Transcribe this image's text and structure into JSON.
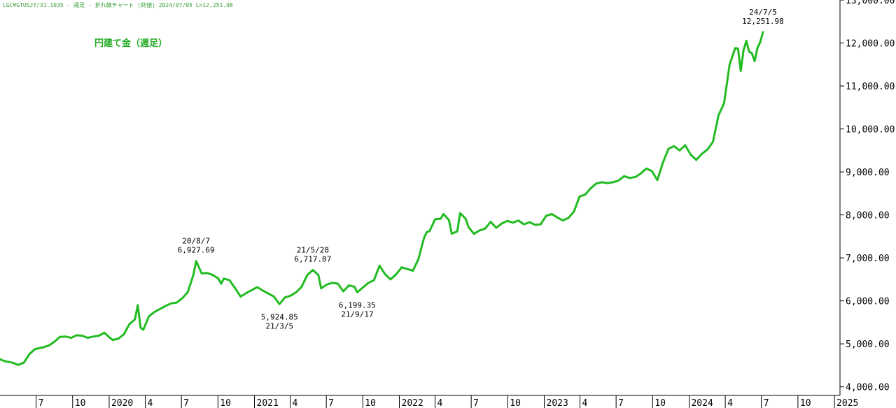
{
  "header": "LGC¥GTUSJY/31.1035 - 週足 - 折れ線チャート (終値)  2024/07/05 L=12,251.98",
  "chart_data": {
    "type": "line",
    "title": "円建て金（週足）",
    "xlabel": "",
    "ylabel": "",
    "ylim": [
      3800,
      13000
    ],
    "y_ticks": [
      "4,000.00",
      "5,000.00",
      "6,000.00",
      "7,000.00",
      "8,000.00",
      "9,000.00",
      "10,000.00",
      "11,000.00",
      "12,000.00",
      "13,000.00"
    ],
    "y_tick_values": [
      4000,
      5000,
      6000,
      7000,
      8000,
      9000,
      10000,
      11000,
      12000,
      13000
    ],
    "x_ticks": [
      {
        "label": "7",
        "date": "2019-07-01"
      },
      {
        "label": "10",
        "date": "2019-10-01"
      },
      {
        "label": "2020",
        "date": "2020-01-01"
      },
      {
        "label": "4",
        "date": "2020-04-01"
      },
      {
        "label": "7",
        "date": "2020-07-01"
      },
      {
        "label": "10",
        "date": "2020-10-01"
      },
      {
        "label": "2021",
        "date": "2021-01-01"
      },
      {
        "label": "4",
        "date": "2021-04-01"
      },
      {
        "label": "7",
        "date": "2021-07-01"
      },
      {
        "label": "10",
        "date": "2021-10-01"
      },
      {
        "label": "2022",
        "date": "2022-01-01"
      },
      {
        "label": "4",
        "date": "2022-04-01"
      },
      {
        "label": "7",
        "date": "2022-07-01"
      },
      {
        "label": "10",
        "date": "2022-10-01"
      },
      {
        "label": "2023",
        "date": "2023-01-01"
      },
      {
        "label": "4",
        "date": "2023-04-01"
      },
      {
        "label": "7",
        "date": "2023-07-01"
      },
      {
        "label": "10",
        "date": "2023-10-01"
      },
      {
        "label": "2024",
        "date": "2024-01-01"
      },
      {
        "label": "4",
        "date": "2024-04-01"
      },
      {
        "label": "7",
        "date": "2024-07-01"
      },
      {
        "label": "10",
        "date": "2024-10-01"
      },
      {
        "label": "2025",
        "date": "2025-01-01"
      }
    ],
    "x_range": [
      "2019-04-01",
      "2025-01-15"
    ],
    "series": [
      {
        "color": "#22bb22",
        "points": [
          [
            "2019-04-01",
            4640
          ],
          [
            "2019-04-12",
            4600
          ],
          [
            "2019-05-03",
            4560
          ],
          [
            "2019-05-17",
            4510
          ],
          [
            "2019-05-31",
            4560
          ],
          [
            "2019-06-14",
            4760
          ],
          [
            "2019-06-28",
            4880
          ],
          [
            "2019-07-19",
            4920
          ],
          [
            "2019-08-02",
            4960
          ],
          [
            "2019-08-16",
            5050
          ],
          [
            "2019-08-30",
            5160
          ],
          [
            "2019-09-13",
            5170
          ],
          [
            "2019-09-27",
            5140
          ],
          [
            "2019-10-11",
            5200
          ],
          [
            "2019-10-25",
            5190
          ],
          [
            "2019-11-08",
            5140
          ],
          [
            "2019-11-22",
            5170
          ],
          [
            "2019-12-06",
            5190
          ],
          [
            "2019-12-20",
            5260
          ],
          [
            "2020-01-03",
            5140
          ],
          [
            "2020-01-10",
            5090
          ],
          [
            "2020-01-24",
            5120
          ],
          [
            "2020-02-07",
            5220
          ],
          [
            "2020-02-21",
            5460
          ],
          [
            "2020-03-06",
            5570
          ],
          [
            "2020-03-13",
            5900
          ],
          [
            "2020-03-20",
            5380
          ],
          [
            "2020-03-27",
            5330
          ],
          [
            "2020-04-10",
            5640
          ],
          [
            "2020-04-24",
            5740
          ],
          [
            "2020-05-08",
            5810
          ],
          [
            "2020-05-22",
            5880
          ],
          [
            "2020-06-05",
            5940
          ],
          [
            "2020-06-19",
            5960
          ],
          [
            "2020-07-03",
            6060
          ],
          [
            "2020-07-17",
            6200
          ],
          [
            "2020-07-31",
            6600
          ],
          [
            "2020-08-07",
            6928
          ],
          [
            "2020-08-21",
            6640
          ],
          [
            "2020-09-04",
            6650
          ],
          [
            "2020-09-18",
            6600
          ],
          [
            "2020-10-02",
            6520
          ],
          [
            "2020-10-09",
            6400
          ],
          [
            "2020-10-16",
            6520
          ],
          [
            "2020-10-30",
            6480
          ],
          [
            "2020-11-13",
            6300
          ],
          [
            "2020-11-27",
            6100
          ],
          [
            "2020-12-11",
            6180
          ],
          [
            "2020-12-25",
            6250
          ],
          [
            "2021-01-08",
            6320
          ],
          [
            "2021-01-22",
            6240
          ],
          [
            "2021-02-05",
            6170
          ],
          [
            "2021-02-19",
            6100
          ],
          [
            "2021-03-05",
            5925
          ],
          [
            "2021-03-19",
            6080
          ],
          [
            "2021-04-02",
            6120
          ],
          [
            "2021-04-16",
            6200
          ],
          [
            "2021-04-30",
            6330
          ],
          [
            "2021-05-14",
            6600
          ],
          [
            "2021-05-28",
            6717
          ],
          [
            "2021-06-11",
            6600
          ],
          [
            "2021-06-18",
            6290
          ],
          [
            "2021-07-02",
            6380
          ],
          [
            "2021-07-16",
            6420
          ],
          [
            "2021-07-30",
            6400
          ],
          [
            "2021-08-13",
            6220
          ],
          [
            "2021-08-27",
            6360
          ],
          [
            "2021-09-10",
            6330
          ],
          [
            "2021-09-17",
            6199
          ],
          [
            "2021-10-01",
            6310
          ],
          [
            "2021-10-15",
            6420
          ],
          [
            "2021-10-29",
            6480
          ],
          [
            "2021-11-12",
            6820
          ],
          [
            "2021-11-26",
            6620
          ],
          [
            "2021-12-10",
            6500
          ],
          [
            "2021-12-24",
            6620
          ],
          [
            "2022-01-07",
            6780
          ],
          [
            "2022-01-21",
            6740
          ],
          [
            "2022-02-04",
            6700
          ],
          [
            "2022-02-18",
            6970
          ],
          [
            "2022-03-04",
            7460
          ],
          [
            "2022-03-11",
            7600
          ],
          [
            "2022-03-18",
            7620
          ],
          [
            "2022-04-01",
            7900
          ],
          [
            "2022-04-15",
            7910
          ],
          [
            "2022-04-22",
            8020
          ],
          [
            "2022-05-06",
            7880
          ],
          [
            "2022-05-13",
            7560
          ],
          [
            "2022-05-27",
            7620
          ],
          [
            "2022-06-03",
            8040
          ],
          [
            "2022-06-17",
            7910
          ],
          [
            "2022-06-24",
            7720
          ],
          [
            "2022-07-08",
            7560
          ],
          [
            "2022-07-22",
            7640
          ],
          [
            "2022-08-05",
            7680
          ],
          [
            "2022-08-19",
            7840
          ],
          [
            "2022-09-02",
            7700
          ],
          [
            "2022-09-16",
            7800
          ],
          [
            "2022-09-30",
            7860
          ],
          [
            "2022-10-14",
            7820
          ],
          [
            "2022-10-28",
            7870
          ],
          [
            "2022-11-11",
            7780
          ],
          [
            "2022-11-25",
            7830
          ],
          [
            "2022-12-09",
            7770
          ],
          [
            "2022-12-23",
            7780
          ],
          [
            "2023-01-06",
            7980
          ],
          [
            "2023-01-20",
            8020
          ],
          [
            "2023-02-03",
            7940
          ],
          [
            "2023-02-17",
            7870
          ],
          [
            "2023-03-03",
            7930
          ],
          [
            "2023-03-17",
            8080
          ],
          [
            "2023-03-31",
            8430
          ],
          [
            "2023-04-14",
            8470
          ],
          [
            "2023-04-28",
            8620
          ],
          [
            "2023-05-12",
            8730
          ],
          [
            "2023-05-26",
            8760
          ],
          [
            "2023-06-09",
            8740
          ],
          [
            "2023-06-23",
            8760
          ],
          [
            "2023-07-07",
            8800
          ],
          [
            "2023-07-21",
            8900
          ],
          [
            "2023-08-04",
            8860
          ],
          [
            "2023-08-18",
            8880
          ],
          [
            "2023-09-01",
            8960
          ],
          [
            "2023-09-15",
            9080
          ],
          [
            "2023-09-29",
            9020
          ],
          [
            "2023-10-13",
            8810
          ],
          [
            "2023-10-27",
            9220
          ],
          [
            "2023-11-10",
            9540
          ],
          [
            "2023-11-24",
            9600
          ],
          [
            "2023-12-08",
            9500
          ],
          [
            "2023-12-22",
            9620
          ],
          [
            "2024-01-05",
            9400
          ],
          [
            "2024-01-19",
            9280
          ],
          [
            "2024-02-02",
            9420
          ],
          [
            "2024-02-16",
            9520
          ],
          [
            "2024-03-01",
            9700
          ],
          [
            "2024-03-15",
            10320
          ],
          [
            "2024-03-29",
            10600
          ],
          [
            "2024-04-12",
            11500
          ],
          [
            "2024-04-26",
            11880
          ],
          [
            "2024-05-03",
            11870
          ],
          [
            "2024-05-10",
            11350
          ],
          [
            "2024-05-17",
            11830
          ],
          [
            "2024-05-24",
            12050
          ],
          [
            "2024-05-31",
            11800
          ],
          [
            "2024-06-07",
            11760
          ],
          [
            "2024-06-14",
            11580
          ],
          [
            "2024-06-21",
            11880
          ],
          [
            "2024-06-28",
            12020
          ],
          [
            "2024-07-05",
            12252
          ]
        ]
      }
    ],
    "annotations": [
      {
        "lines": [
          "20/8/7",
          "6,927.69"
        ],
        "date": "2020-08-07",
        "value": 6928,
        "position": "above"
      },
      {
        "lines": [
          "21/5/28",
          "6,717.07"
        ],
        "date": "2021-05-28",
        "value": 6717,
        "position": "above"
      },
      {
        "lines": [
          "24/7/5",
          "12,251.98"
        ],
        "date": "2024-07-05",
        "value": 12252,
        "position": "above"
      },
      {
        "lines": [
          "5,924.85",
          "21/3/5"
        ],
        "date": "2021-03-05",
        "value": 5925,
        "position": "below"
      },
      {
        "lines": [
          "6,199.35",
          "21/9/17"
        ],
        "date": "2021-09-17",
        "value": 6199,
        "position": "below"
      }
    ],
    "grid": false,
    "legend": "none"
  }
}
